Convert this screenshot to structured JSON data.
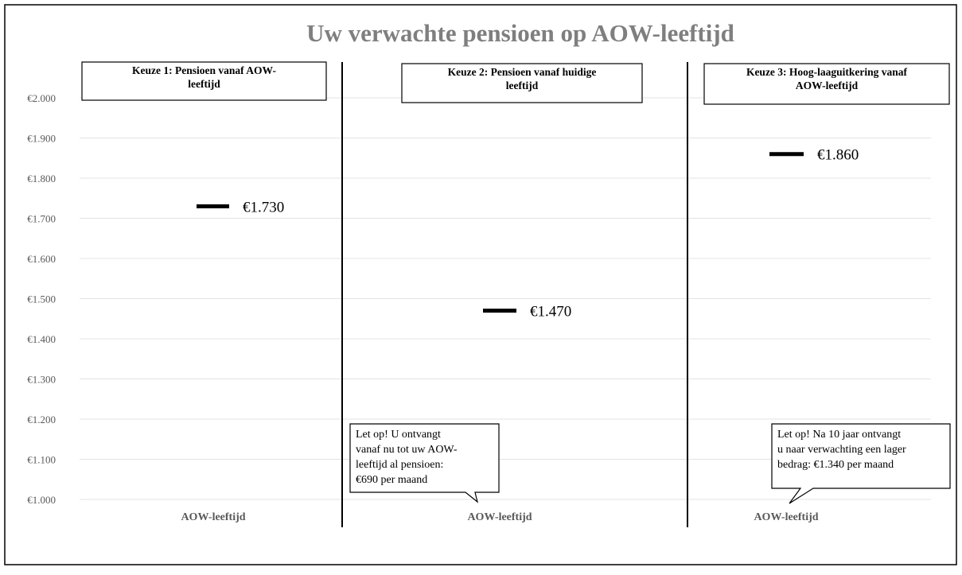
{
  "chart_data": {
    "type": "scatter",
    "title": "Uw verwachte pensioen op AOW-leeftijd",
    "ylim": [
      1000,
      2000
    ],
    "ytick_values": [
      1000,
      1100,
      1200,
      1300,
      1400,
      1500,
      1600,
      1700,
      1800,
      1900,
      2000
    ],
    "ytick_labels": [
      "€1.000",
      "€1.100",
      "€1.200",
      "€1.300",
      "€1.400",
      "€1.500",
      "€1.600",
      "€1.700",
      "€1.800",
      "€1.900",
      "€2.000"
    ],
    "grid": true,
    "panels": [
      {
        "heading": "Keuze 1: Pensioen vanaf AOW-leeftijd",
        "heading_lines": [
          "Keuze 1: Pensioen vanaf AOW-",
          "leeftijd"
        ],
        "xlabel": "AOW-leeftijd",
        "value": 1730,
        "value_label": "€1.730",
        "note_lines": []
      },
      {
        "heading": "Keuze 2: Pensioen vanaf huidige leeftijd",
        "heading_lines": [
          "Keuze 2: Pensioen vanaf huidige",
          "leeftijd"
        ],
        "xlabel": "AOW-leeftijd",
        "value": 1470,
        "value_label": "€1.470",
        "note_lines": [
          "Let op! U ontvangt",
          "vanaf nu tot uw AOW-",
          "leeftijd al pensioen:",
          "€690 per maand"
        ]
      },
      {
        "heading": "Keuze 3: Hoog-laaguitkering vanaf AOW-leeftijd",
        "heading_lines": [
          "Keuze 3: Hoog-laaguitkering vanaf",
          "AOW-leeftijd"
        ],
        "xlabel": "AOW-leeftijd",
        "value": 1860,
        "value_label": "€1.860",
        "note_lines": [
          "Let op! Na 10 jaar ontvangt",
          "u naar verwachting een lager",
          "bedrag: €1.340 per maand"
        ]
      }
    ]
  },
  "colors": {
    "title": "#7f7f7f",
    "axis_labels": "#595959",
    "grid": "#e3e3e3",
    "marker": "#000000",
    "frame": "#000000",
    "divider": "#000000"
  }
}
